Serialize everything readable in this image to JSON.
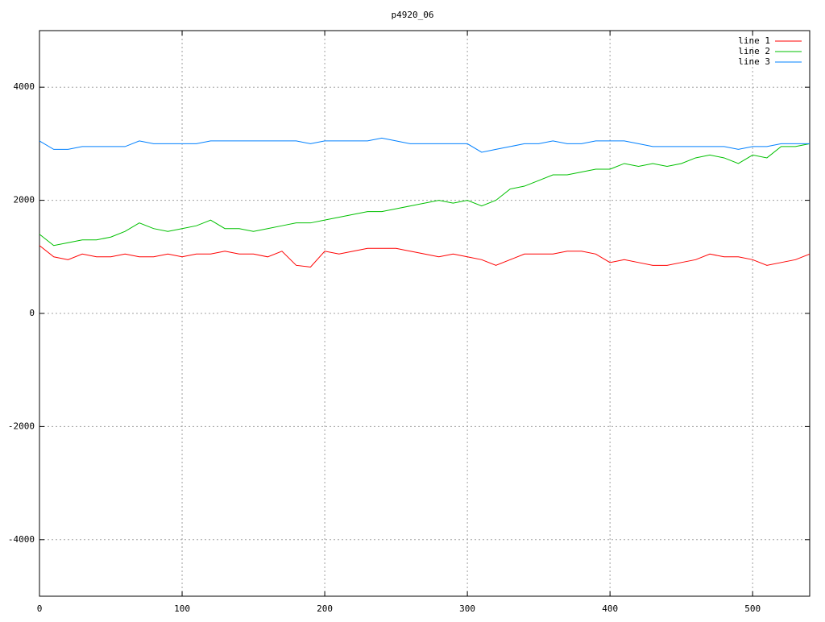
{
  "chart_data": {
    "type": "line",
    "title": "p4920_06",
    "x": [
      0,
      10,
      20,
      30,
      40,
      50,
      60,
      70,
      80,
      90,
      100,
      110,
      120,
      130,
      140,
      150,
      160,
      170,
      180,
      190,
      200,
      210,
      220,
      230,
      240,
      250,
      260,
      270,
      280,
      290,
      300,
      310,
      320,
      330,
      340,
      350,
      360,
      370,
      380,
      390,
      400,
      410,
      420,
      430,
      440,
      450,
      460,
      470,
      480,
      490,
      500,
      510,
      520,
      530,
      540
    ],
    "series": [
      {
        "name": "line 1",
        "color": "#ff0000",
        "values": [
          1200,
          1000,
          950,
          1050,
          1000,
          1000,
          1050,
          1000,
          1000,
          1050,
          1000,
          1050,
          1050,
          1100,
          1050,
          1050,
          1000,
          1100,
          850,
          820,
          1100,
          1050,
          1100,
          1150,
          1150,
          1150,
          1100,
          1050,
          1000,
          1050,
          1000,
          950,
          850,
          950,
          1050,
          1050,
          1050,
          1100,
          1100,
          1050,
          900,
          950,
          900,
          850,
          850,
          900,
          950,
          1050,
          1000,
          1000,
          950,
          850,
          900,
          950,
          1050
        ]
      },
      {
        "name": "line 2",
        "color": "#00c000",
        "values": [
          1400,
          1200,
          1250,
          1300,
          1300,
          1350,
          1450,
          1600,
          1500,
          1450,
          1500,
          1550,
          1650,
          1500,
          1500,
          1450,
          1500,
          1550,
          1600,
          1600,
          1650,
          1700,
          1750,
          1800,
          1800,
          1850,
          1900,
          1950,
          2000,
          1950,
          2000,
          1900,
          2000,
          2200,
          2250,
          2350,
          2450,
          2450,
          2500,
          2550,
          2550,
          2650,
          2600,
          2650,
          2600,
          2650,
          2750,
          2800,
          2750,
          2650,
          2800,
          2750,
          2950,
          2950,
          3000
        ]
      },
      {
        "name": "line 3",
        "color": "#0080ff",
        "values": [
          3050,
          2900,
          2900,
          2950,
          2950,
          2950,
          2950,
          3050,
          3000,
          3000,
          3000,
          3000,
          3050,
          3050,
          3050,
          3050,
          3050,
          3050,
          3050,
          3000,
          3050,
          3050,
          3050,
          3050,
          3100,
          3050,
          3000,
          3000,
          3000,
          3000,
          3000,
          2850,
          2900,
          2950,
          3000,
          3000,
          3050,
          3000,
          3000,
          3050,
          3050,
          3050,
          3000,
          2950,
          2950,
          2950,
          2950,
          2950,
          2950,
          2900,
          2950,
          2950,
          3000,
          3000,
          3000
        ]
      }
    ],
    "xlim": [
      0,
      540
    ],
    "xticks": [
      0,
      100,
      200,
      300,
      400,
      500
    ],
    "ylim": [
      -5000,
      5000
    ],
    "yticks": [
      -4000,
      -2000,
      0,
      2000,
      4000
    ],
    "grid": true,
    "legend": "top-right"
  }
}
